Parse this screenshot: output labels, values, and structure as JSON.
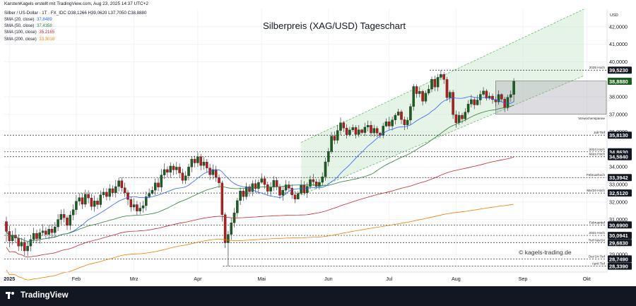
{
  "header": {
    "author_line": "KarstenKagels erstellt mit TradingView.com, Aug 23, 2025 14:37 UTC+2",
    "symbol_line": "Silber / US-Dollar · 1T · FX_IDC  O38,1266  H39,0620  L37,7050  C38,8880"
  },
  "moving_averages": [
    {
      "label": "SMA (20, close)",
      "value": "37,8489",
      "color": "#2962ff"
    },
    {
      "label": "SMA (50, close)",
      "value": "37,4358",
      "color": "#2e7d32"
    },
    {
      "label": "SMA (100, close)",
      "value": "35,2165",
      "color": "#c62828"
    },
    {
      "label": "SMA (200, close)",
      "value": "33,3018",
      "color": "#f57c00"
    }
  ],
  "watermark": "© kagels-trading.de",
  "footer": {
    "brand": "TradingView"
  },
  "colors": {
    "up": "#1b5e20",
    "down": "#b71c1c",
    "channel": "#c8e6c9"
  },
  "chart_data": {
    "type": "candlestick",
    "title": "Silberpreis (XAG/USD) Tageschart",
    "currency": "USD",
    "y_range": [
      28.0,
      43.0
    ],
    "y_ticks": [
      {
        "v": 42,
        "label": "42,0000"
      },
      {
        "v": 41,
        "label": "41,0000"
      },
      {
        "v": 40,
        "label": "40,0000"
      },
      {
        "v": 38,
        "label": "38,0000"
      },
      {
        "v": 37,
        "label": "37,0000"
      },
      {
        "v": 36,
        "label": "36,0000"
      },
      {
        "v": 34,
        "label": "34,0000"
      },
      {
        "v": 33,
        "label": "33,0000"
      },
      {
        "v": 32,
        "label": "32,0000"
      },
      {
        "v": 31,
        "label": "31,0000"
      },
      {
        "v": 29,
        "label": "29,0000"
      }
    ],
    "x_labels": [
      {
        "i": 1,
        "label": "2025",
        "bold": true
      },
      {
        "i": 23,
        "label": "Feb"
      },
      {
        "i": 42,
        "label": "Mrz"
      },
      {
        "i": 63,
        "label": "Apr"
      },
      {
        "i": 84,
        "label": "Mai"
      },
      {
        "i": 106,
        "label": "Jun"
      },
      {
        "i": 126,
        "label": "Jul"
      },
      {
        "i": 148,
        "label": "Aug"
      },
      {
        "i": 170,
        "label": "Sep"
      },
      {
        "i": 191,
        "label": "Okt"
      }
    ],
    "levels": [
      {
        "value": 39.523,
        "label": "39,5230",
        "note": "2025 Hoch",
        "start": 140
      },
      {
        "value": 35.813,
        "label": "35,8130",
        "note": "Juli-Tief",
        "start": 0
      },
      {
        "value": 34.863,
        "label": "34,8630",
        "note": "2024 Hoch",
        "start": 0
      },
      {
        "value": 34.584,
        "label": "34,5840",
        "note": "März-Hoch",
        "start": 0
      },
      {
        "value": 33.3942,
        "label": "33,3942",
        "note": "Februarhoch",
        "start": 38
      },
      {
        "value": 32.512,
        "label": "32,5120",
        "note": "Mai'24-Hoch",
        "start": 0
      },
      {
        "value": 30.69,
        "label": "30,6900",
        "note": "Februartief",
        "start": 0
      },
      {
        "value": 30.0941,
        "label": "30,0941",
        "note": "2021-Hoch",
        "start": 0
      },
      {
        "value": 29.683,
        "label": "29,6830",
        "note": "Tief Nov/24",
        "start": 0
      },
      {
        "value": 28.749,
        "label": "28,7490",
        "note": "Dez'24-Tief",
        "start": 0
      },
      {
        "value": 28.339,
        "label": "28,3390",
        "note": "April-Tief",
        "start": 72
      }
    ],
    "last_price": {
      "value": 38.888,
      "label": "38,8880"
    },
    "previous_week_range": {
      "high": 38.9,
      "low": 37.0,
      "note": "Vorwochenspanne",
      "start": 161
    },
    "trend_channel": {
      "upper": [
        [
          97,
          35.4
        ],
        [
          190,
          43.0
        ]
      ],
      "lower": [
        [
          97,
          32.4
        ],
        [
          190,
          39.2
        ]
      ]
    },
    "candles": [
      [
        30.88,
        30.32,
        31.16,
        29.72
      ],
      [
        30.32,
        29.78,
        30.64,
        29.42
      ],
      [
        29.78,
        30.11,
        30.36,
        29.56
      ],
      [
        30.11,
        29.94,
        30.51,
        29.66
      ],
      [
        29.94,
        29.48,
        30.16,
        29.2
      ],
      [
        29.48,
        29.71,
        29.95,
        29.21
      ],
      [
        29.71,
        29.21,
        29.98,
        28.94
      ],
      [
        29.21,
        29.48,
        29.72,
        28.92
      ],
      [
        29.48,
        29.86,
        30.12,
        29.18
      ],
      [
        29.86,
        30.21,
        30.53,
        29.65
      ],
      [
        30.21,
        29.91,
        30.42,
        29.64
      ],
      [
        29.91,
        30.25,
        30.48,
        29.63
      ],
      [
        30.25,
        30.35,
        30.72,
        30.07
      ],
      [
        30.35,
        30.15,
        30.55,
        29.94
      ],
      [
        30.15,
        30.45,
        30.7,
        29.87
      ],
      [
        30.45,
        30.25,
        30.73,
        30.0
      ],
      [
        30.25,
        30.58,
        30.86,
        29.96
      ],
      [
        30.58,
        31.0,
        31.3,
        30.34
      ],
      [
        31.0,
        31.3,
        31.57,
        30.72
      ],
      [
        31.3,
        31.1,
        31.61,
        30.83
      ],
      [
        31.1,
        30.66,
        31.24,
        30.4
      ],
      [
        30.66,
        31.26,
        31.49,
        30.4
      ],
      [
        31.26,
        31.56,
        31.86,
        30.96
      ],
      [
        31.56,
        32.04,
        32.4,
        31.27
      ],
      [
        32.04,
        32.25,
        32.5,
        31.79
      ],
      [
        32.25,
        31.87,
        32.51,
        31.6
      ],
      [
        31.87,
        32.44,
        32.7,
        31.7
      ],
      [
        32.44,
        32.23,
        32.66,
        31.92
      ],
      [
        32.23,
        31.74,
        32.47,
        31.52
      ],
      [
        31.74,
        32.06,
        32.36,
        31.45
      ],
      [
        32.06,
        31.85,
        32.25,
        31.59
      ],
      [
        31.85,
        32.41,
        32.65,
        31.67
      ],
      [
        32.41,
        32.56,
        32.79,
        32.22
      ],
      [
        32.56,
        32.31,
        32.79,
        32.09
      ],
      [
        32.31,
        32.76,
        33.02,
        32.08
      ],
      [
        32.76,
        32.53,
        32.95,
        32.29
      ],
      [
        32.53,
        32.88,
        33.25,
        32.25
      ],
      [
        32.88,
        33.21,
        33.39,
        32.6
      ],
      [
        33.21,
        32.81,
        33.39,
        32.58
      ],
      [
        32.81,
        32.53,
        33.1,
        32.29
      ],
      [
        32.53,
        32.14,
        32.68,
        31.82
      ],
      [
        32.14,
        31.71,
        32.31,
        31.45
      ],
      [
        31.71,
        31.85,
        32.21,
        31.5
      ],
      [
        31.85,
        31.48,
        32.06,
        31.24
      ],
      [
        31.48,
        31.65,
        31.98,
        31.29
      ],
      [
        31.65,
        31.79,
        32.07,
        31.39
      ],
      [
        31.79,
        32.3,
        32.59,
        31.5
      ],
      [
        32.3,
        32.48,
        32.77,
        32.21
      ],
      [
        32.48,
        32.67,
        32.88,
        32.41
      ],
      [
        32.67,
        33.09,
        33.33,
        32.4
      ],
      [
        33.09,
        32.85,
        33.39,
        32.62
      ],
      [
        32.85,
        33.54,
        33.88,
        32.57
      ],
      [
        33.54,
        33.85,
        34.2,
        33.31
      ],
      [
        33.85,
        33.69,
        34.03,
        33.41
      ],
      [
        33.69,
        34.05,
        34.26,
        33.4
      ],
      [
        34.05,
        33.83,
        34.19,
        33.53
      ],
      [
        33.83,
        33.99,
        34.28,
        33.58
      ],
      [
        33.99,
        33.66,
        34.2,
        33.39
      ],
      [
        33.66,
        33.23,
        33.89,
        33.03
      ],
      [
        33.23,
        33.49,
        33.75,
        33.03
      ],
      [
        33.49,
        34.0,
        34.18,
        33.22
      ],
      [
        34.0,
        34.45,
        34.59,
        33.7
      ],
      [
        34.45,
        34.23,
        34.64,
        33.98
      ],
      [
        34.23,
        34.58,
        34.84,
        34.0
      ],
      [
        34.58,
        34.08,
        34.74,
        33.8
      ],
      [
        34.08,
        34.28,
        34.56,
        33.84
      ],
      [
        34.28,
        33.94,
        34.45,
        33.69
      ],
      [
        33.94,
        33.55,
        34.19,
        33.25
      ],
      [
        33.55,
        33.85,
        34.14,
        33.29
      ],
      [
        33.85,
        33.4,
        34.06,
        33.15
      ],
      [
        33.4,
        33.09,
        33.57,
        32.8
      ],
      [
        33.09,
        31.28,
        33.21,
        30.88
      ],
      [
        31.28,
        29.67,
        31.39,
        29.37
      ],
      [
        29.67,
        30.15,
        30.35,
        28.34
      ],
      [
        30.15,
        30.81,
        31.12,
        29.84
      ],
      [
        30.81,
        31.38,
        31.66,
        30.55
      ],
      [
        31.38,
        32.08,
        32.24,
        31.14
      ],
      [
        32.08,
        32.63,
        32.82,
        31.83
      ],
      [
        32.63,
        32.3,
        32.75,
        32.06
      ],
      [
        32.3,
        32.87,
        33.1,
        32.14
      ],
      [
        32.87,
        32.59,
        33.01,
        32.31
      ],
      [
        32.59,
        33.05,
        33.23,
        32.35
      ],
      [
        33.05,
        32.76,
        33.28,
        32.53
      ],
      [
        32.76,
        33.12,
        33.27,
        32.46
      ],
      [
        33.12,
        33.33,
        33.63,
        33.03
      ],
      [
        33.33,
        32.99,
        33.5,
        32.77
      ],
      [
        32.99,
        32.61,
        33.16,
        32.36
      ],
      [
        32.61,
        32.85,
        33.12,
        32.31
      ],
      [
        32.85,
        33.23,
        33.47,
        32.62
      ],
      [
        33.23,
        32.87,
        33.41,
        32.66
      ],
      [
        32.87,
        32.38,
        33.03,
        32.18
      ],
      [
        32.38,
        32.67,
        32.9,
        32.08
      ],
      [
        32.67,
        32.98,
        33.25,
        32.42
      ],
      [
        32.98,
        32.79,
        33.19,
        32.59
      ],
      [
        32.79,
        32.4,
        33.01,
        32.18
      ],
      [
        32.4,
        32.16,
        32.63,
        31.93
      ],
      [
        32.16,
        32.48,
        32.62,
        32.16
      ],
      [
        32.48,
        32.95,
        33.26,
        32.4
      ],
      [
        32.95,
        32.52,
        33.18,
        32.37
      ],
      [
        32.52,
        32.89,
        33.11,
        32.23
      ],
      [
        32.89,
        33.28,
        33.5,
        32.75
      ],
      [
        33.28,
        33.15,
        33.6,
        32.92
      ],
      [
        33.15,
        32.89,
        33.32,
        32.74
      ],
      [
        32.89,
        33.12,
        33.3,
        32.71
      ],
      [
        33.12,
        33.44,
        33.68,
        32.93
      ],
      [
        33.44,
        34.29,
        34.52,
        33.21
      ],
      [
        34.29,
        34.88,
        35.08,
        34.04
      ],
      [
        34.88,
        35.76,
        36.0,
        34.76
      ],
      [
        35.76,
        35.52,
        36.02,
        35.3
      ],
      [
        35.52,
        36.08,
        36.38,
        35.33
      ],
      [
        36.08,
        36.52,
        36.82,
        35.81
      ],
      [
        36.52,
        36.22,
        36.63,
        35.99
      ],
      [
        36.22,
        35.84,
        36.44,
        35.62
      ],
      [
        35.84,
        36.11,
        36.3,
        35.73
      ],
      [
        36.11,
        36.25,
        36.42,
        35.99
      ],
      [
        36.25,
        35.85,
        36.38,
        35.62
      ],
      [
        35.85,
        36.12,
        36.39,
        35.69
      ],
      [
        36.12,
        35.96,
        36.18,
        35.86
      ],
      [
        35.96,
        36.27,
        36.52,
        35.76
      ],
      [
        36.27,
        36.38,
        36.64,
        36.03
      ],
      [
        36.38,
        35.94,
        36.61,
        35.73
      ],
      [
        35.94,
        36.2,
        36.4,
        35.72
      ],
      [
        36.2,
        35.93,
        36.33,
        35.7
      ],
      [
        35.93,
        35.8,
        36.01,
        35.63
      ],
      [
        35.8,
        36.33,
        36.52,
        35.63
      ],
      [
        36.33,
        36.58,
        36.77,
        36.27
      ],
      [
        36.58,
        36.33,
        36.86,
        36.12
      ],
      [
        36.33,
        36.68,
        36.87,
        36.08
      ],
      [
        36.68,
        36.95,
        37.07,
        36.42
      ],
      [
        36.95,
        37.14,
        37.32,
        36.91
      ],
      [
        37.14,
        36.7,
        37.26,
        36.45
      ],
      [
        36.7,
        36.4,
        36.87,
        36.1
      ],
      [
        36.4,
        36.67,
        36.84,
        36.15
      ],
      [
        36.67,
        37.45,
        37.61,
        36.39
      ],
      [
        37.45,
        38.59,
        38.73,
        37.21
      ],
      [
        38.59,
        38.18,
        38.71,
        37.94
      ],
      [
        38.18,
        38.31,
        38.55,
        37.97
      ],
      [
        38.31,
        37.75,
        38.41,
        37.51
      ],
      [
        37.75,
        38.21,
        38.37,
        37.61
      ],
      [
        38.21,
        38.44,
        38.68,
        38.09
      ],
      [
        38.44,
        39.0,
        39.16,
        38.26
      ],
      [
        39.0,
        38.56,
        39.2,
        38.33
      ],
      [
        38.56,
        39.11,
        39.31,
        38.32
      ],
      [
        39.11,
        39.28,
        39.52,
        38.96
      ],
      [
        39.28,
        38.99,
        39.41,
        38.74
      ],
      [
        38.99,
        37.95,
        39.14,
        37.77
      ],
      [
        37.95,
        38.26,
        38.39,
        37.69
      ],
      [
        38.26,
        36.98,
        38.4,
        36.74
      ],
      [
        36.98,
        36.52,
        37.22,
        36.24
      ],
      [
        36.52,
        36.95,
        37.16,
        36.38
      ],
      [
        36.95,
        36.74,
        37.09,
        36.48
      ],
      [
        36.74,
        37.13,
        37.35,
        36.6
      ],
      [
        37.13,
        37.59,
        37.81,
        37.01
      ],
      [
        37.59,
        37.84,
        38.11,
        37.4
      ],
      [
        37.84,
        37.54,
        37.95,
        37.3
      ],
      [
        37.54,
        37.82,
        38.1,
        37.5
      ],
      [
        37.82,
        38.14,
        38.36,
        37.53
      ],
      [
        38.14,
        38.33,
        38.55,
        38.05
      ],
      [
        38.33,
        37.92,
        38.44,
        37.79
      ],
      [
        37.92,
        38.04,
        38.25,
        37.82
      ],
      [
        38.04,
        37.84,
        38.18,
        37.6
      ],
      [
        37.84,
        37.71,
        38.02,
        37.44
      ],
      [
        37.71,
        38.13,
        38.37,
        37.55
      ],
      [
        38.13,
        37.87,
        38.2,
        37.71
      ],
      [
        37.87,
        37.38,
        37.99,
        37.13
      ],
      [
        37.38,
        37.97,
        38.12,
        37.21
      ],
      [
        37.97,
        38.13,
        38.37,
        37.71
      ],
      [
        38.13,
        38.89,
        39.06,
        37.71
      ]
    ]
  }
}
